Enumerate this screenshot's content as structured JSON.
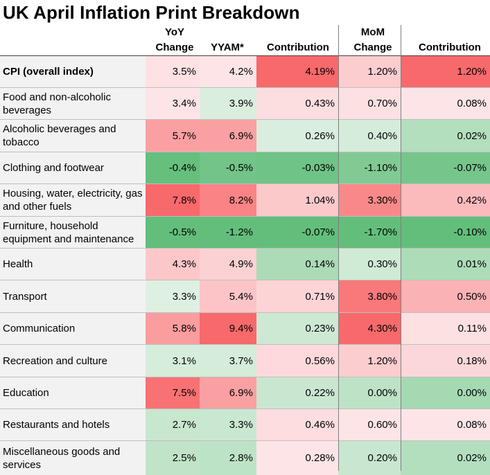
{
  "title": "UK April Inflation Print Breakdown",
  "headers": {
    "yoy_change": [
      "YoY",
      "Change"
    ],
    "yyam": "YYAM*",
    "contribution": "Contribution",
    "mom_change": [
      "MoM",
      "Change"
    ],
    "mom_contribution": "Contribution"
  },
  "colors": {
    "red_strong": "#f8696b",
    "red_light": "#fde5e7",
    "green_strong": "#63be7b",
    "green_light": "#e3f2e6",
    "neutral": "#fcfcff",
    "label_bg": "#f2f2f2"
  },
  "chart_data": {
    "type": "table",
    "title": "UK April Inflation Print Breakdown",
    "columns": [
      "YoY Change",
      "YYAM*",
      "Contribution",
      "MoM Change",
      "Contribution"
    ],
    "rows": [
      {
        "label": "CPI (overall index)",
        "bold": true,
        "yoy": 3.5,
        "yyam": 4.2,
        "contrib": 4.19,
        "mom": 1.2,
        "mom_contrib": 1.2
      },
      {
        "label": "Food and non-alcoholic beverages",
        "yoy": 3.4,
        "yyam": 3.9,
        "contrib": 0.43,
        "mom": 0.7,
        "mom_contrib": 0.08
      },
      {
        "label": "Alcoholic beverages and tobacco",
        "yoy": 5.7,
        "yyam": 6.9,
        "contrib": 0.26,
        "mom": 0.4,
        "mom_contrib": 0.02
      },
      {
        "label": "Clothing and footwear",
        "yoy": -0.4,
        "yyam": -0.5,
        "contrib": -0.03,
        "mom": -1.1,
        "mom_contrib": -0.07
      },
      {
        "label": "Housing, water, electricity, gas and other fuels",
        "yoy": 7.8,
        "yyam": 8.2,
        "contrib": 1.04,
        "mom": 3.3,
        "mom_contrib": 0.42
      },
      {
        "label": "Furniture, household equipment and maintenance",
        "yoy": -0.5,
        "yyam": -1.2,
        "contrib": -0.07,
        "mom": -1.7,
        "mom_contrib": -0.1
      },
      {
        "label": "Health",
        "yoy": 4.3,
        "yyam": 4.9,
        "contrib": 0.14,
        "mom": 0.3,
        "mom_contrib": 0.01
      },
      {
        "label": "Transport",
        "yoy": 3.3,
        "yyam": 5.4,
        "contrib": 0.71,
        "mom": 3.8,
        "mom_contrib": 0.5
      },
      {
        "label": "Communication",
        "yoy": 5.8,
        "yyam": 9.4,
        "contrib": 0.23,
        "mom": 4.3,
        "mom_contrib": 0.11
      },
      {
        "label": "Recreation and culture",
        "yoy": 3.1,
        "yyam": 3.7,
        "contrib": 0.56,
        "mom": 1.2,
        "mom_contrib": 0.18
      },
      {
        "label": "Education",
        "yoy": 7.5,
        "yyam": 6.9,
        "contrib": 0.22,
        "mom": 0.0,
        "mom_contrib": 0.0
      },
      {
        "label": "Restaurants and hotels",
        "yoy": 2.7,
        "yyam": 3.3,
        "contrib": 0.46,
        "mom": 0.6,
        "mom_contrib": 0.08
      },
      {
        "label": "Miscellaneous goods and services",
        "yoy": 2.5,
        "yyam": 2.8,
        "contrib": 0.28,
        "mom": 0.2,
        "mom_contrib": 0.02
      }
    ]
  }
}
